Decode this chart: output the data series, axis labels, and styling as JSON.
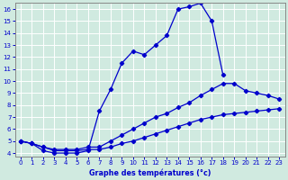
{
  "xlabel": "Graphe des températures (°c)",
  "line_color": "#0000cc",
  "bg_color": "#cce8d8",
  "grid_color": "#b0d8c0",
  "ylim": [
    4,
    16
  ],
  "xlim": [
    -0.5,
    23.5
  ],
  "yticks": [
    4,
    5,
    6,
    7,
    8,
    9,
    10,
    11,
    12,
    13,
    14,
    15,
    16
  ],
  "xticks": [
    0,
    1,
    2,
    3,
    4,
    5,
    6,
    7,
    8,
    9,
    10,
    11,
    12,
    13,
    14,
    15,
    16,
    17,
    18,
    19,
    20,
    21,
    22,
    23
  ],
  "series1_x": [
    0,
    1,
    2,
    3,
    4,
    5,
    6,
    7,
    8,
    9,
    10,
    11,
    12,
    13,
    14,
    15,
    16,
    17,
    18
  ],
  "series1_y": [
    5.0,
    4.8,
    4.2,
    4.0,
    4.0,
    4.0,
    4.2,
    7.5,
    9.3,
    11.5,
    12.5,
    12.2,
    13.0,
    13.8,
    16.0,
    16.2,
    16.5,
    15.0,
    10.5
  ],
  "series2_x": [
    0,
    1,
    2,
    3,
    4,
    5,
    6,
    7,
    8,
    9,
    10,
    11,
    12,
    13,
    14,
    15,
    16,
    17,
    18,
    19,
    20,
    21,
    22,
    23
  ],
  "series2_y": [
    5.0,
    4.8,
    4.5,
    4.3,
    4.3,
    4.3,
    4.5,
    4.5,
    5.0,
    5.5,
    6.0,
    6.5,
    7.0,
    7.3,
    7.8,
    8.2,
    8.8,
    9.3,
    9.8,
    9.8,
    9.2,
    9.0,
    8.8,
    8.5
  ],
  "series3_x": [
    0,
    1,
    2,
    3,
    4,
    5,
    6,
    7,
    8,
    9,
    10,
    11,
    12,
    13,
    14,
    15,
    16,
    17,
    18,
    19,
    20,
    21,
    22,
    23
  ],
  "series3_y": [
    5.0,
    4.8,
    4.5,
    4.2,
    4.2,
    4.2,
    4.3,
    4.3,
    4.5,
    4.8,
    5.0,
    5.3,
    5.6,
    5.9,
    6.2,
    6.5,
    6.8,
    7.0,
    7.2,
    7.3,
    7.4,
    7.5,
    7.6,
    7.7
  ]
}
